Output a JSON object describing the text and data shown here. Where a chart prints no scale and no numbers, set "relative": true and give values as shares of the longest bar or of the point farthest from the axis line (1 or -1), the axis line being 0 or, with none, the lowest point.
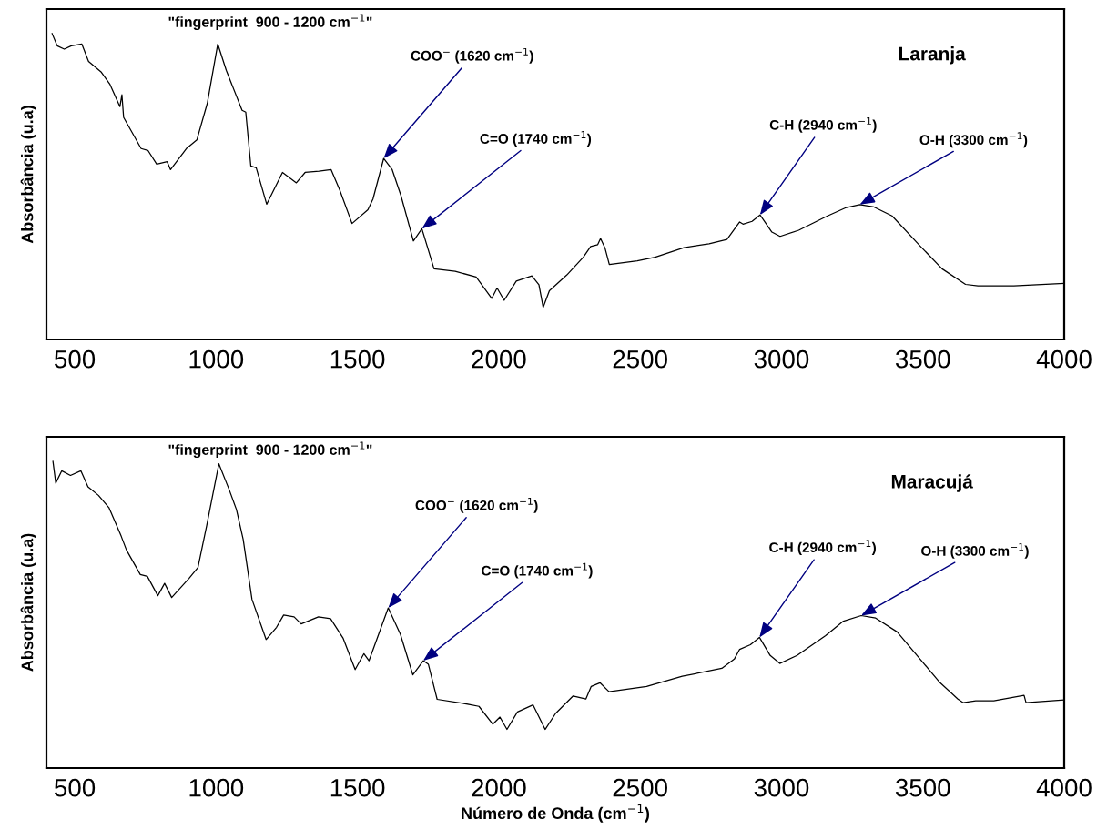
{
  "chart_data": [
    {
      "type": "line",
      "title": "Laranja",
      "ylabel": "Absorbância (u.a)",
      "relative": true,
      "xlim": [
        400,
        4000
      ],
      "xticks": [
        500,
        1000,
        1500,
        2000,
        2500,
        3000,
        3500,
        4000
      ],
      "tick_labels": "x",
      "series": [
        {
          "color": "#000000",
          "x": [
            420,
            438,
            463,
            488,
            525,
            549,
            593,
            624,
            660,
            667,
            673,
            735,
            759,
            790,
            827,
            839,
            895,
            932,
            969,
            1006,
            1036,
            1092,
            1105,
            1123,
            1142,
            1179,
            1235,
            1284,
            1315,
            1364,
            1407,
            1438,
            1481,
            1537,
            1555,
            1593,
            1623,
            1654,
            1698,
            1728,
            1771,
            1846,
            1920,
            1975,
            1994,
            2019,
            2062,
            2117,
            2142,
            2157,
            2179,
            2241,
            2299,
            2325,
            2350,
            2360,
            2376,
            2391,
            2490,
            2553,
            2655,
            2744,
            2807,
            2852,
            2864,
            2896,
            2924,
            2966,
            2995,
            3061,
            3163,
            3226,
            3277,
            3327,
            3391,
            3492,
            3568,
            3651,
            3695,
            3822,
            4000
          ],
          "values": [
            1.0,
            0.96,
            0.949,
            0.96,
            0.966,
            0.909,
            0.875,
            0.835,
            0.761,
            0.8,
            0.726,
            0.624,
            0.618,
            0.573,
            0.581,
            0.555,
            0.624,
            0.652,
            0.772,
            0.966,
            0.88,
            0.749,
            0.743,
            0.567,
            0.561,
            0.442,
            0.546,
            0.512,
            0.546,
            0.55,
            0.555,
            0.487,
            0.379,
            0.424,
            0.459,
            0.592,
            0.555,
            0.47,
            0.322,
            0.362,
            0.231,
            0.223,
            0.204,
            0.134,
            0.168,
            0.128,
            0.191,
            0.208,
            0.179,
            0.105,
            0.159,
            0.211,
            0.269,
            0.304,
            0.31,
            0.33,
            0.298,
            0.245,
            0.257,
            0.269,
            0.3,
            0.313,
            0.327,
            0.384,
            0.377,
            0.386,
            0.407,
            0.351,
            0.337,
            0.357,
            0.404,
            0.43,
            0.441,
            0.433,
            0.404,
            0.304,
            0.231,
            0.18,
            0.175,
            0.175,
            0.183
          ]
        }
      ],
      "annotations": [
        "\"fingerprint  900 - 1200 cm$^{−1}$\"",
        {
          "text": "COO$^{−}$ (1620 cm$^{−1}$)",
          "x": 1593,
          "y": 0.592
        },
        {
          "text": "C=O (1740 cm$^{−1}$)",
          "x": 1728,
          "y": 0.362
        },
        {
          "text": "C-H (2940 cm$^{−1}$)",
          "x": 2924,
          "y": 0.407
        },
        {
          "text": "O-H (3300 cm$^{−1}$)",
          "x": 3277,
          "y": 0.441
        }
      ]
    },
    {
      "type": "line",
      "title": "Maracujá",
      "xlabel": "Número de Onda (cm$^{−1}$)",
      "ylabel": "Absorbância (u.a)",
      "relative": true,
      "xlim": [
        400,
        4000
      ],
      "xticks": [
        500,
        1000,
        1500,
        2000,
        2500,
        3000,
        3500,
        4000
      ],
      "tick_labels": "x",
      "series": [
        {
          "color": "#000000",
          "x": [
            423,
            433,
            454,
            485,
            522,
            547,
            584,
            621,
            664,
            683,
            732,
            757,
            794,
            818,
            843,
            905,
            936,
            967,
            1010,
            1047,
            1072,
            1096,
            1127,
            1177,
            1214,
            1239,
            1276,
            1301,
            1362,
            1405,
            1449,
            1492,
            1523,
            1541,
            1566,
            1609,
            1652,
            1696,
            1733,
            1751,
            1782,
            1868,
            1930,
            1979,
            2004,
            2029,
            2066,
            2121,
            2164,
            2201,
            2263,
            2308,
            2327,
            2358,
            2390,
            2523,
            2649,
            2789,
            2833,
            2852,
            2890,
            2922,
            2960,
            2994,
            3055,
            3156,
            3219,
            3282,
            3333,
            3409,
            3485,
            3561,
            3624,
            3643,
            3687,
            3751,
            3858,
            3865,
            4000
          ],
          "values": [
            1.0,
            0.929,
            0.969,
            0.954,
            0.969,
            0.917,
            0.889,
            0.849,
            0.757,
            0.711,
            0.631,
            0.625,
            0.562,
            0.602,
            0.556,
            0.619,
            0.654,
            0.791,
            0.992,
            0.906,
            0.843,
            0.745,
            0.55,
            0.419,
            0.459,
            0.499,
            0.493,
            0.47,
            0.493,
            0.487,
            0.424,
            0.321,
            0.373,
            0.35,
            0.413,
            0.522,
            0.436,
            0.304,
            0.35,
            0.338,
            0.224,
            0.212,
            0.201,
            0.143,
            0.166,
            0.126,
            0.183,
            0.206,
            0.126,
            0.178,
            0.235,
            0.225,
            0.266,
            0.278,
            0.249,
            0.266,
            0.299,
            0.325,
            0.355,
            0.387,
            0.402,
            0.426,
            0.367,
            0.341,
            0.367,
            0.432,
            0.479,
            0.497,
            0.489,
            0.444,
            0.361,
            0.278,
            0.225,
            0.213,
            0.219,
            0.219,
            0.237,
            0.213,
            0.222
          ]
        }
      ],
      "annotations": [
        "\"fingerprint  900 - 1200 cm$^{−1}$\"",
        {
          "text": "COO$^{−}$ (1620 cm$^{−1}$)",
          "x": 1609,
          "y": 0.522
        },
        {
          "text": "C=O (1740 cm$^{−1}$)",
          "x": 1733,
          "y": 0.35
        },
        {
          "text": "C-H (2940 cm$^{−1}$)",
          "x": 2922,
          "y": 0.426
        },
        {
          "text": "O-H (3300 cm$^{−1}$)",
          "x": 3282,
          "y": 0.497
        }
      ]
    }
  ]
}
